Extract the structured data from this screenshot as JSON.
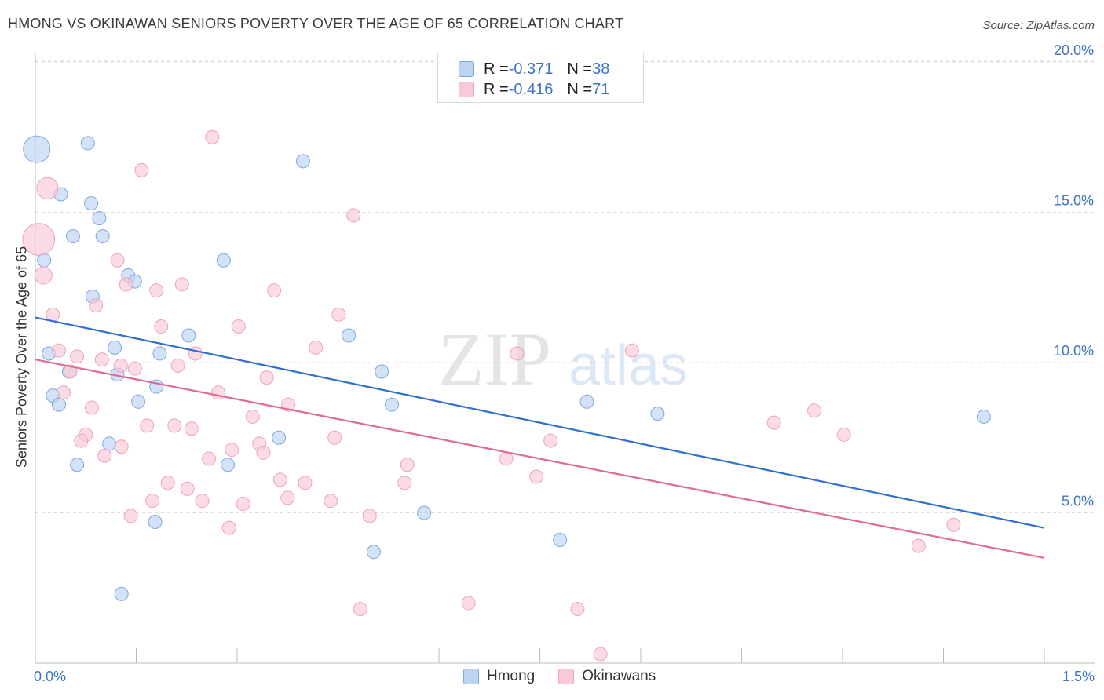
{
  "title": "HMONG VS OKINAWAN SENIORS POVERTY OVER THE AGE OF 65 CORRELATION CHART",
  "source": "Source: ZipAtlas.com",
  "watermark": {
    "zip": "ZIP",
    "atlas": "atlas"
  },
  "legend": {
    "rows": [
      {
        "r_label": "R = ",
        "r_value": "-0.371",
        "n_label": "N = ",
        "n_value": "38"
      },
      {
        "r_label": "R = ",
        "r_value": "-0.416",
        "n_label": "N = ",
        "n_value": "71"
      }
    ],
    "bottom": [
      {
        "label": "Hmong"
      },
      {
        "label": "Okinawans"
      }
    ]
  },
  "colors": {
    "hmong_fill": "#bcd3f2",
    "hmong_stroke": "#7ea8df",
    "hmong_line": "#2f6fcf",
    "okinawan_fill": "#f9c9d8",
    "okinawan_stroke": "#eea3bb",
    "okinawan_line": "#e06a96",
    "grid": "#dddddd",
    "axis_label": "#3d73c7"
  },
  "chart_data": {
    "type": "scatter",
    "title": "HMONG VS OKINAWAN SENIORS POVERTY OVER THE AGE OF 65 CORRELATION CHART",
    "xlabel": "",
    "ylabel": "Seniors Poverty Over the Age of 65",
    "xlim": [
      0,
      1.5
    ],
    "ylim": [
      0,
      20.5
    ],
    "x_ticks": [
      "0.0%",
      "1.5%"
    ],
    "y_ticks": [
      {
        "value": 5,
        "label": "5.0%"
      },
      {
        "value": 10,
        "label": "10.0%"
      },
      {
        "value": 15,
        "label": "15.0%"
      },
      {
        "value": 20,
        "label": "20.0%"
      }
    ],
    "grid": true,
    "legend_position": "top-center",
    "series": [
      {
        "name": "Hmong",
        "r": -0.371,
        "n": 38,
        "trend": {
          "x": [
            0,
            1.5
          ],
          "y": [
            11.5,
            4.5
          ]
        },
        "points": [
          [
            0.002,
            17.1,
            2.0
          ],
          [
            0.078,
            17.3,
            1
          ],
          [
            0.398,
            16.7,
            1
          ],
          [
            0.038,
            15.6,
            1
          ],
          [
            0.083,
            15.3,
            1
          ],
          [
            0.095,
            14.8,
            1
          ],
          [
            0.056,
            14.2,
            1
          ],
          [
            0.1,
            14.2,
            1
          ],
          [
            0.013,
            13.4,
            1
          ],
          [
            0.28,
            13.4,
            1
          ],
          [
            0.138,
            12.9,
            1
          ],
          [
            0.148,
            12.7,
            1
          ],
          [
            0.085,
            12.2,
            1
          ],
          [
            0.228,
            10.9,
            1
          ],
          [
            0.466,
            10.9,
            1
          ],
          [
            0.118,
            10.5,
            1
          ],
          [
            0.02,
            10.3,
            1
          ],
          [
            0.185,
            10.3,
            1
          ],
          [
            0.05,
            9.7,
            1
          ],
          [
            0.122,
            9.6,
            1
          ],
          [
            0.515,
            9.7,
            1
          ],
          [
            0.18,
            9.2,
            1
          ],
          [
            0.026,
            8.9,
            1
          ],
          [
            0.035,
            8.6,
            1
          ],
          [
            0.153,
            8.7,
            1
          ],
          [
            0.53,
            8.6,
            1
          ],
          [
            0.82,
            8.7,
            1
          ],
          [
            0.925,
            8.3,
            1
          ],
          [
            1.41,
            8.2,
            1
          ],
          [
            0.362,
            7.5,
            1
          ],
          [
            0.11,
            7.3,
            1
          ],
          [
            0.286,
            6.6,
            1
          ],
          [
            0.062,
            6.6,
            1
          ],
          [
            0.578,
            5.0,
            1
          ],
          [
            0.178,
            4.7,
            1
          ],
          [
            0.78,
            4.1,
            1
          ],
          [
            0.503,
            3.7,
            1
          ],
          [
            0.128,
            2.3,
            1
          ]
        ]
      },
      {
        "name": "Okinawans",
        "r": -0.416,
        "n": 71,
        "trend": {
          "x": [
            0,
            1.5
          ],
          "y": [
            10.1,
            3.5
          ]
        },
        "points": [
          [
            0.263,
            17.5,
            1
          ],
          [
            0.158,
            16.4,
            1
          ],
          [
            0.018,
            15.8,
            1.6
          ],
          [
            0.473,
            14.9,
            1
          ],
          [
            0.005,
            14.1,
            2.4
          ],
          [
            0.122,
            13.4,
            1
          ],
          [
            0.012,
            12.9,
            1.3
          ],
          [
            0.135,
            12.6,
            1
          ],
          [
            0.218,
            12.6,
            1
          ],
          [
            0.18,
            12.4,
            1
          ],
          [
            0.355,
            12.4,
            1
          ],
          [
            0.09,
            11.9,
            1
          ],
          [
            0.026,
            11.6,
            1
          ],
          [
            0.451,
            11.6,
            1
          ],
          [
            0.187,
            11.2,
            1
          ],
          [
            0.302,
            11.2,
            1
          ],
          [
            0.417,
            10.5,
            1
          ],
          [
            0.035,
            10.4,
            1
          ],
          [
            0.238,
            10.3,
            1
          ],
          [
            0.062,
            10.2,
            1
          ],
          [
            0.716,
            10.3,
            1
          ],
          [
            0.887,
            10.4,
            1
          ],
          [
            0.099,
            10.1,
            1
          ],
          [
            0.127,
            9.9,
            1
          ],
          [
            0.212,
            9.9,
            1
          ],
          [
            0.148,
            9.8,
            1
          ],
          [
            0.052,
            9.7,
            1
          ],
          [
            0.344,
            9.5,
            1
          ],
          [
            0.042,
            9.0,
            1
          ],
          [
            0.272,
            9.0,
            1
          ],
          [
            0.376,
            8.6,
            1
          ],
          [
            0.084,
            8.5,
            1
          ],
          [
            1.158,
            8.4,
            1
          ],
          [
            0.323,
            8.2,
            1
          ],
          [
            1.098,
            8.0,
            1
          ],
          [
            0.166,
            7.9,
            1
          ],
          [
            0.207,
            7.9,
            1
          ],
          [
            0.232,
            7.8,
            1
          ],
          [
            0.075,
            7.6,
            1
          ],
          [
            1.202,
            7.6,
            1
          ],
          [
            0.445,
            7.5,
            1
          ],
          [
            0.068,
            7.4,
            1
          ],
          [
            0.766,
            7.4,
            1
          ],
          [
            0.333,
            7.3,
            1
          ],
          [
            0.128,
            7.2,
            1
          ],
          [
            0.292,
            7.1,
            1
          ],
          [
            0.339,
            7.0,
            1
          ],
          [
            0.103,
            6.9,
            1
          ],
          [
            0.7,
            6.8,
            1
          ],
          [
            0.258,
            6.8,
            1
          ],
          [
            0.553,
            6.6,
            1
          ],
          [
            0.745,
            6.2,
            1
          ],
          [
            0.364,
            6.1,
            1
          ],
          [
            0.197,
            6.0,
            1
          ],
          [
            0.401,
            6.0,
            1
          ],
          [
            0.549,
            6.0,
            1
          ],
          [
            0.226,
            5.8,
            1
          ],
          [
            0.375,
            5.5,
            1
          ],
          [
            0.174,
            5.4,
            1
          ],
          [
            0.248,
            5.4,
            1
          ],
          [
            0.439,
            5.4,
            1
          ],
          [
            0.309,
            5.3,
            1
          ],
          [
            0.142,
            4.9,
            1
          ],
          [
            0.497,
            4.9,
            1
          ],
          [
            1.365,
            4.6,
            1
          ],
          [
            0.288,
            4.5,
            1
          ],
          [
            1.313,
            3.9,
            1
          ],
          [
            0.644,
            2.0,
            1
          ],
          [
            0.483,
            1.8,
            1
          ],
          [
            0.806,
            1.8,
            1
          ],
          [
            0.84,
            0.3,
            1
          ]
        ]
      }
    ]
  }
}
